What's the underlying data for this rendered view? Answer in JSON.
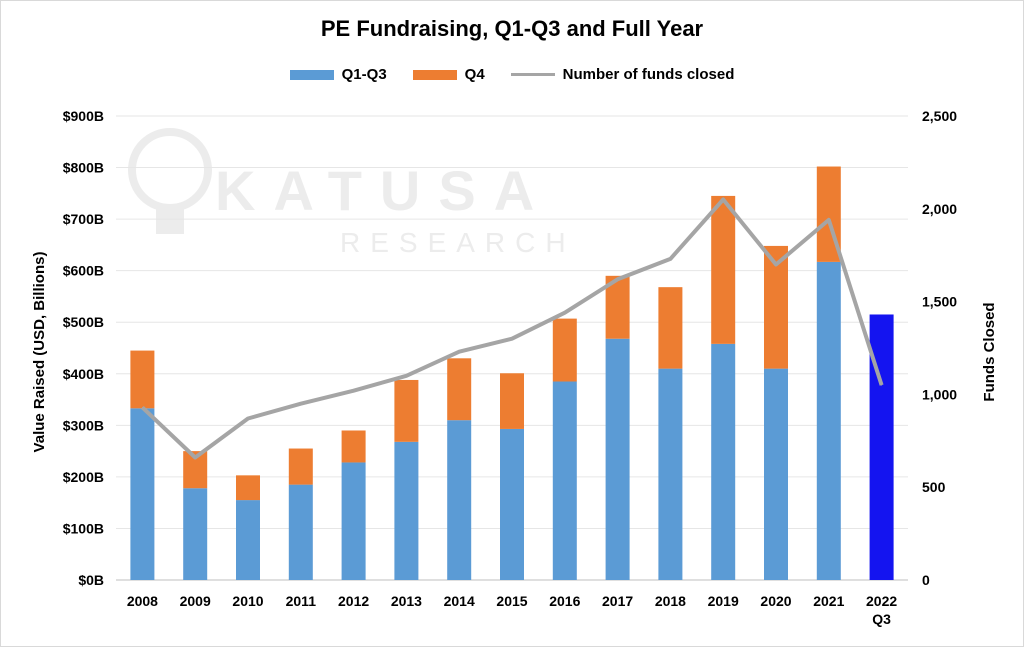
{
  "chart_data": {
    "type": "bar",
    "title": "PE Fundraising, Q1-Q3 and Full Year",
    "watermark": {
      "line1": "KATUSA",
      "line2": "RESEARCH"
    },
    "categories": [
      "2008",
      "2009",
      "2010",
      "2011",
      "2012",
      "2013",
      "2014",
      "2015",
      "2016",
      "2017",
      "2018",
      "2019",
      "2020",
      "2021",
      "2022 Q3"
    ],
    "series": [
      {
        "name": "Q1-Q3",
        "kind": "bar",
        "color": "#5b9bd5",
        "values": [
          333,
          178,
          155,
          185,
          228,
          268,
          310,
          293,
          385,
          468,
          410,
          458,
          410,
          617,
          515
        ]
      },
      {
        "name": "Q4",
        "kind": "bar",
        "color": "#ed7d31",
        "values": [
          112,
          72,
          48,
          70,
          62,
          120,
          120,
          108,
          122,
          122,
          158,
          287,
          238,
          185,
          0
        ]
      },
      {
        "name": "Number of funds closed",
        "kind": "line",
        "axis": "right",
        "color": "#a5a5a5",
        "values": [
          930,
          660,
          870,
          950,
          1020,
          1100,
          1230,
          1300,
          1440,
          1620,
          1730,
          2050,
          1700,
          1940,
          1050
        ]
      }
    ],
    "highlight": {
      "category": "2022 Q3",
      "color": "#1414f0"
    },
    "ylabel": "Value Raised (USD, Billions)",
    "y2label": "Funds Closed",
    "ylim": [
      0,
      900
    ],
    "y2lim": [
      0,
      2500
    ],
    "yticks": [
      "$0B",
      "$100B",
      "$200B",
      "$300B",
      "$400B",
      "$500B",
      "$600B",
      "$700B",
      "$800B",
      "$900B"
    ],
    "y2ticks": [
      "0",
      "500",
      "1,000",
      "1,500",
      "2,000",
      "2,500"
    ],
    "grid": true,
    "legend": "top-center"
  }
}
